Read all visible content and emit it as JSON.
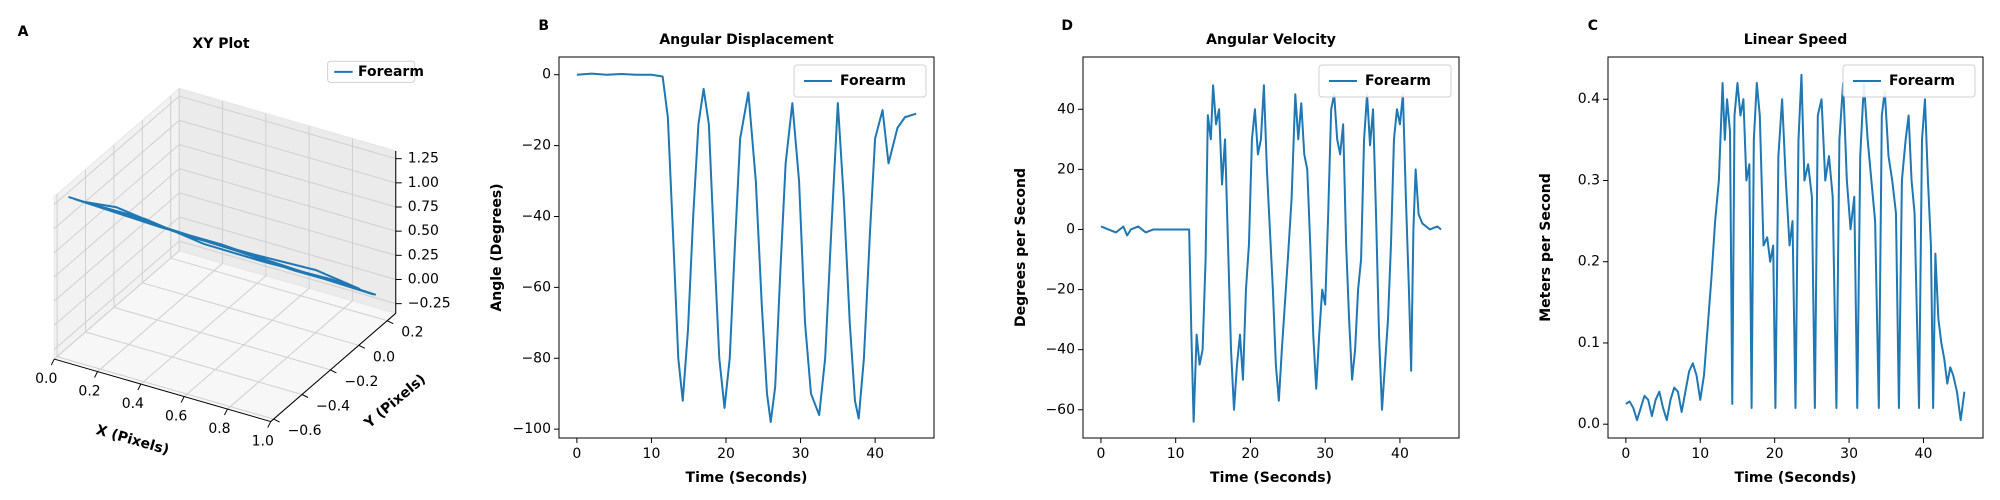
{
  "chart_data": [
    {
      "type": "line3d",
      "panel_label": "A",
      "title": "XY Plot",
      "xlabel": "X (Pixels)",
      "ylabel": "Y (Pixels)",
      "xlim": [
        0,
        1
      ],
      "ylim": [
        -0.62,
        0.26
      ],
      "zlim": [
        -0.35,
        1.33
      ],
      "xticks": [
        {
          "value": 0,
          "label": "0.0"
        },
        0.2,
        0.4,
        0.6,
        0.8,
        {
          "value": 1,
          "label": "1.0"
        }
      ],
      "yticks": [
        {
          "value": -0.6,
          "label": "−0.6"
        },
        {
          "value": -0.4,
          "label": "−0.4"
        },
        {
          "value": -0.2,
          "label": "−0.2"
        },
        {
          "value": 0,
          "label": "0.0"
        },
        0.2
      ],
      "zticks": [
        {
          "value": -0.25,
          "label": "−0.25"
        },
        {
          "value": 0,
          "label": "0.00"
        },
        0.25,
        {
          "value": 0.5,
          "label": "0.50"
        },
        0.75,
        {
          "value": 1,
          "label": "1.00"
        },
        1.25
      ],
      "grid": true,
      "legend": "upper right",
      "series": [
        {
          "name": "Forearm",
          "color": "#1f77b4",
          "x": [
            0,
            0.2,
            0.4,
            0.6,
            0.8,
            1.0,
            0.85,
            0.65,
            0.45,
            0.25,
            0.05,
            0.15,
            0.35,
            0.55,
            0.75,
            0.95,
            0.8,
            0.6,
            0.4,
            0.2,
            0.02,
            0.3,
            0.5,
            0.7,
            0.9,
            1.0
          ],
          "y": [
            -0.52,
            -0.4,
            -0.27,
            -0.15,
            -0.02,
            0.1,
            0.03,
            -0.13,
            -0.25,
            -0.36,
            -0.5,
            -0.41,
            -0.32,
            -0.17,
            -0.07,
            0.08,
            0.0,
            -0.12,
            -0.29,
            -0.38,
            -0.51,
            -0.33,
            -0.21,
            -0.09,
            0.05,
            0.12
          ],
          "z": [
            1.2,
            0.98,
            0.74,
            0.52,
            0.27,
            0.05,
            0.2,
            0.45,
            0.66,
            0.93,
            1.16,
            1.05,
            0.82,
            0.55,
            0.35,
            0.1,
            0.3,
            0.48,
            0.76,
            0.95,
            1.18,
            0.84,
            0.64,
            0.4,
            0.15,
            0.02
          ]
        }
      ]
    },
    {
      "type": "line",
      "panel_label": "B",
      "title": "Angular Displacement",
      "xlabel": "Time (Seconds)",
      "ylabel": "Angle (Degrees)",
      "xlim": [
        -2.4,
        47.9
      ],
      "xticks": [
        0,
        10,
        20,
        30,
        40
      ],
      "ylim": [
        -102.5,
        5
      ],
      "yticks": [
        0,
        {
          "value": -20,
          "label": "−20"
        },
        {
          "value": -40,
          "label": "−40"
        },
        {
          "value": -60,
          "label": "−60"
        },
        {
          "value": -80,
          "label": "−80"
        },
        {
          "value": -100,
          "label": "−100"
        }
      ],
      "legend": "upper right",
      "x": [
        0,
        2,
        4,
        6,
        8,
        10,
        11.5,
        12.2,
        13,
        13.6,
        14.2,
        14.9,
        15.6,
        16.3,
        17,
        17.7,
        18.4,
        19.1,
        19.8,
        20.5,
        21.2,
        21.9,
        23,
        24,
        24.8,
        25.5,
        26,
        26.6,
        27.3,
        28,
        28.9,
        29.8,
        30.6,
        31.4,
        32.5,
        33.3,
        34.1,
        35,
        35.8,
        36.6,
        37.3,
        37.8,
        38.5,
        39.3,
        40,
        41,
        41.8,
        43,
        44,
        45.5
      ],
      "series": [
        {
          "name": "Forearm",
          "color": "#1f77b4",
          "values": [
            0,
            0.3,
            0,
            0.2,
            0,
            0,
            -0.5,
            -12,
            -50,
            -80,
            -92,
            -72,
            -40,
            -14,
            -4,
            -14,
            -48,
            -80,
            -94,
            -80,
            -48,
            -18,
            -5,
            -30,
            -65,
            -90,
            -98,
            -88,
            -55,
            -25,
            -8,
            -30,
            -70,
            -90,
            -96,
            -80,
            -45,
            -8,
            -35,
            -70,
            -92,
            -97,
            -80,
            -45,
            -18,
            -10,
            -25,
            -15,
            -12,
            -11
          ]
        }
      ]
    },
    {
      "type": "line",
      "panel_label": "D",
      "title": "Angular Velocity",
      "xlabel": "Time (Seconds)",
      "ylabel": "Degrees per Second",
      "xlim": [
        -2.4,
        47.9
      ],
      "xticks": [
        0,
        10,
        20,
        30,
        40
      ],
      "ylim": [
        -69.4,
        57.4
      ],
      "yticks": [
        {
          "value": -60,
          "label": "−60"
        },
        {
          "value": -40,
          "label": "−40"
        },
        {
          "value": -20,
          "label": "−20"
        },
        0,
        20,
        40
      ],
      "legend": "upper right",
      "x": [
        0,
        1,
        2,
        3,
        3.5,
        4,
        5,
        6,
        7,
        8,
        9,
        10,
        11,
        11.8,
        12.1,
        12.4,
        12.8,
        13.2,
        13.6,
        14,
        14.3,
        14.7,
        15,
        15.4,
        15.8,
        16.2,
        16.6,
        17,
        17.4,
        17.8,
        18.2,
        18.6,
        19,
        19.4,
        19.8,
        20.2,
        20.6,
        21,
        21.4,
        21.8,
        22.2,
        22.6,
        23,
        23.4,
        23.8,
        24.2,
        24.6,
        25,
        25.5,
        26,
        26.4,
        26.8,
        27.2,
        27.6,
        28,
        28.4,
        28.8,
        29.2,
        29.6,
        30,
        30.4,
        30.8,
        31.2,
        31.6,
        32,
        32.4,
        32.8,
        33.2,
        33.6,
        34,
        34.4,
        34.8,
        35.2,
        35.6,
        36,
        36.4,
        36.8,
        37.2,
        37.6,
        38,
        38.4,
        38.8,
        39.2,
        39.6,
        40,
        40.4,
        40.8,
        41.2,
        41.5,
        41.8,
        42.1,
        42.5,
        43,
        44,
        45,
        45.5
      ],
      "series": [
        {
          "name": "Forearm",
          "color": "#1f77b4",
          "values": [
            1,
            0,
            -1,
            1,
            -2,
            0,
            1,
            -1,
            0,
            0,
            0,
            0,
            0,
            0,
            -35,
            -64,
            -35,
            -45,
            -40,
            -10,
            38,
            30,
            48,
            35,
            40,
            15,
            30,
            -5,
            -40,
            -60,
            -45,
            -35,
            -50,
            -20,
            -5,
            30,
            40,
            25,
            30,
            48,
            20,
            0,
            -20,
            -45,
            -57,
            -40,
            -25,
            -10,
            10,
            45,
            30,
            42,
            25,
            20,
            -5,
            -35,
            -53,
            -35,
            -20,
            -25,
            5,
            40,
            45,
            30,
            25,
            35,
            -5,
            -30,
            -50,
            -40,
            -20,
            -10,
            30,
            45,
            28,
            40,
            5,
            -35,
            -60,
            -45,
            -30,
            -5,
            30,
            40,
            35,
            45,
            10,
            -20,
            -47,
            0,
            20,
            5,
            2,
            0,
            1,
            0
          ]
        }
      ]
    },
    {
      "type": "line",
      "panel_label": "C",
      "title": "Linear Speed",
      "xlabel": "Time (Seconds)",
      "ylabel": "Meters per Second",
      "xlim": [
        -2.4,
        48
      ],
      "xticks": [
        0,
        10,
        20,
        30,
        40
      ],
      "ylim": [
        -0.017,
        0.452
      ],
      "yticks": [
        {
          "value": 0,
          "label": "0.0"
        },
        0.1,
        0.2,
        0.3,
        0.4
      ],
      "legend": "upper right",
      "x": [
        0,
        0.5,
        1,
        1.5,
        2,
        2.5,
        3,
        3.5,
        4,
        4.5,
        5,
        5.5,
        6,
        6.5,
        7,
        7.5,
        8,
        8.5,
        9,
        9.5,
        10,
        10.5,
        11,
        11.5,
        12,
        12.5,
        13,
        13.3,
        13.6,
        14,
        14.3,
        14.6,
        15,
        15.4,
        15.8,
        16.2,
        16.6,
        16.9,
        17.2,
        17.6,
        18,
        18.5,
        19,
        19.4,
        19.8,
        20.1,
        20.5,
        21,
        21.5,
        22,
        22.4,
        22.8,
        23.2,
        23.6,
        24,
        24.5,
        25,
        25.4,
        25.8,
        26.3,
        26.8,
        27.3,
        27.8,
        28.3,
        28.7,
        29.2,
        29.7,
        30.2,
        30.7,
        31.1,
        31.5,
        32,
        32.5,
        33,
        33.5,
        34,
        34.4,
        34.8,
        35.3,
        35.8,
        36.3,
        36.7,
        37.1,
        37.6,
        38,
        38.4,
        38.8,
        39.2,
        39.4,
        39.8,
        40.2,
        40.6,
        41,
        41.3,
        41.6,
        42,
        42.4,
        42.8,
        43.2,
        43.6,
        44,
        44.5,
        45,
        45.5
      ],
      "series": [
        {
          "name": "Forearm",
          "color": "#1f77b4",
          "values": [
            0.025,
            0.028,
            0.02,
            0.005,
            0.02,
            0.035,
            0.03,
            0.01,
            0.03,
            0.04,
            0.02,
            0.005,
            0.03,
            0.045,
            0.04,
            0.015,
            0.04,
            0.065,
            0.075,
            0.06,
            0.03,
            0.06,
            0.12,
            0.18,
            0.25,
            0.3,
            0.42,
            0.35,
            0.4,
            0.36,
            0.025,
            0.38,
            0.42,
            0.38,
            0.4,
            0.3,
            0.32,
            0.02,
            0.35,
            0.42,
            0.38,
            0.22,
            0.23,
            0.2,
            0.22,
            0.02,
            0.33,
            0.4,
            0.3,
            0.22,
            0.25,
            0.02,
            0.35,
            0.43,
            0.3,
            0.32,
            0.28,
            0.02,
            0.38,
            0.4,
            0.3,
            0.33,
            0.28,
            0.02,
            0.35,
            0.42,
            0.3,
            0.24,
            0.28,
            0.02,
            0.33,
            0.42,
            0.35,
            0.3,
            0.25,
            0.02,
            0.38,
            0.41,
            0.33,
            0.3,
            0.26,
            0.02,
            0.3,
            0.35,
            0.38,
            0.3,
            0.26,
            0.1,
            0.02,
            0.35,
            0.4,
            0.3,
            0.22,
            0.02,
            0.21,
            0.13,
            0.1,
            0.08,
            0.05,
            0.07,
            0.06,
            0.04,
            0.005,
            0.04
          ]
        }
      ]
    }
  ]
}
